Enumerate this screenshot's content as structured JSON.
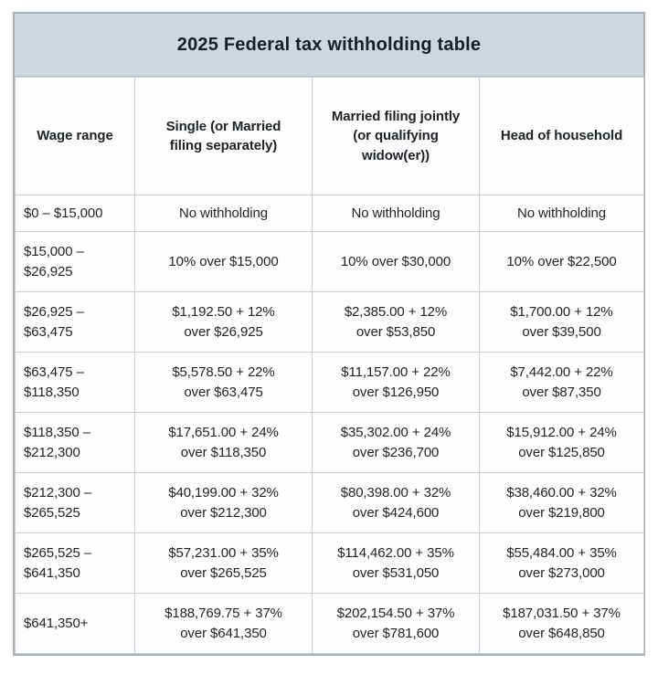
{
  "title": "2025 Federal tax withholding table",
  "colors": {
    "title_bar_bg": "#ccd7de",
    "grid_line": "#c9ced2",
    "outer_border": "#a9b0b5",
    "text": "#1e2327"
  },
  "table": {
    "columns": [
      {
        "label": "Wage range"
      },
      {
        "label": "Single (or Married\nfiling separately)"
      },
      {
        "label": "Married filing jointly\n(or qualifying\nwidow(er))"
      },
      {
        "label": "Head of household"
      }
    ],
    "rows": [
      {
        "wage_range": "$0 – $15,000",
        "single": "No withholding",
        "married_jointly": "No withholding",
        "head_of_household": "No withholding"
      },
      {
        "wage_range": "$15,000 –\n$26,925",
        "single": "10% over $15,000",
        "married_jointly": "10% over $30,000",
        "head_of_household": "10% over $22,500"
      },
      {
        "wage_range": "$26,925 –\n$63,475",
        "single": "$1,192.50 + 12%\nover $26,925",
        "married_jointly": "$2,385.00 + 12%\nover $53,850",
        "head_of_household": "$1,700.00 + 12%\nover $39,500"
      },
      {
        "wage_range": "$63,475 –\n$118,350",
        "single": "$5,578.50 + 22%\nover $63,475",
        "married_jointly": "$11,157.00 + 22%\nover $126,950",
        "head_of_household": "$7,442.00 + 22%\nover $87,350"
      },
      {
        "wage_range": "$118,350 –\n$212,300",
        "single": "$17,651.00 + 24%\nover $118,350",
        "married_jointly": "$35,302.00 + 24%\nover $236,700",
        "head_of_household": "$15,912.00 + 24%\nover $125,850"
      },
      {
        "wage_range": "$212,300 –\n$265,525",
        "single": "$40,199.00 + 32%\nover $212,300",
        "married_jointly": "$80,398.00 + 32%\nover $424,600",
        "head_of_household": "$38,460.00 + 32%\nover $219,800"
      },
      {
        "wage_range": "$265,525 –\n$641,350",
        "single": "$57,231.00 + 35%\nover $265,525",
        "married_jointly": "$114,462.00 + 35%\nover $531,050",
        "head_of_household": "$55,484.00 + 35%\nover $273,000"
      },
      {
        "wage_range": "$641,350+",
        "single": "$188,769.75 + 37%\nover $641,350",
        "married_jointly": "$202,154.50 + 37%\nover $781,600",
        "head_of_household": "$187,031.50 + 37%\nover $648,850"
      }
    ]
  }
}
